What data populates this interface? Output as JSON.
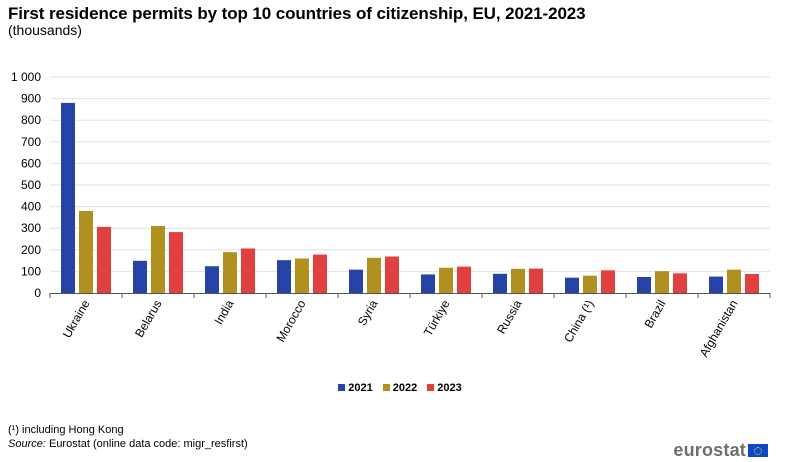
{
  "chart_data": {
    "type": "bar",
    "title": "First residence permits by top 10 countries of citizenship, EU, 2021-2023",
    "subtitle": "(thousands)",
    "xlabel": "",
    "ylabel": "",
    "ylim": [
      0,
      1000
    ],
    "yticks": [
      0,
      100,
      200,
      300,
      400,
      500,
      600,
      700,
      800,
      900,
      1000
    ],
    "ytick_labels": [
      "0",
      "100",
      "200",
      "300",
      "400",
      "500",
      "600",
      "700",
      "800",
      "900",
      "1 000"
    ],
    "grid": true,
    "legend_position": "bottom-center",
    "categories": [
      "Ukraine",
      "Belarus",
      "India",
      "Morocco",
      "Syria",
      "Türkiye",
      "Russia",
      "China (¹)",
      "Brazil",
      "Afghanistan"
    ],
    "series": [
      {
        "name": "2021",
        "color": "#2644a7",
        "values": [
          880,
          149,
          124,
          152,
          108,
          86,
          89,
          71,
          74,
          76
        ]
      },
      {
        "name": "2022",
        "color": "#b09120",
        "values": [
          380,
          310,
          189,
          160,
          163,
          117,
          112,
          80,
          101,
          108
        ]
      },
      {
        "name": "2023",
        "color": "#e04040",
        "values": [
          306,
          282,
          206,
          178,
          169,
          122,
          113,
          105,
          91,
          88
        ]
      }
    ]
  },
  "footnote": "(¹) including  Hong  Kong",
  "source": {
    "label": "Source:",
    "text": " Eurostat (online data code: migr_resfirst)"
  },
  "logo": {
    "text": "eurostat"
  }
}
